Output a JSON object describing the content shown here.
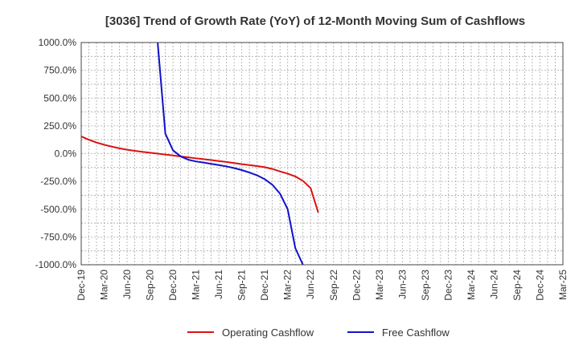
{
  "chart_data": {
    "type": "line",
    "title": "[3036]  Trend of Growth Rate (YoY) of 12-Month Moving Sum of Cashflows",
    "xlabel": "",
    "ylabel": "",
    "ylim": [
      -1000,
      1000
    ],
    "yticks": [
      1000,
      750,
      500,
      250,
      0,
      -250,
      -500,
      -750,
      -1000
    ],
    "ytick_labels": [
      "1000.0%",
      "750.0%",
      "500.0%",
      "250.0%",
      "0.0%",
      "-250.0%",
      "-500.0%",
      "-750.0%",
      "-1000.0%"
    ],
    "x_start": "Dec-19",
    "x_end": "Mar-25",
    "x_tick_labels": [
      "Dec-19",
      "Mar-20",
      "Jun-20",
      "Sep-20",
      "Dec-20",
      "Mar-21",
      "Jun-21",
      "Sep-21",
      "Dec-21",
      "Mar-22",
      "Jun-22",
      "Sep-22",
      "Dec-22",
      "Mar-23",
      "Jun-23",
      "Sep-23",
      "Dec-23",
      "Mar-24",
      "Jun-24",
      "Sep-24",
      "Dec-24",
      "Mar-25"
    ],
    "grid": true,
    "legend_position": "bottom",
    "series": [
      {
        "name": "Operating Cashflow",
        "color": "#dd1111",
        "points": [
          [
            "Dec-19",
            155
          ],
          [
            "Jan-20",
            125
          ],
          [
            "Feb-20",
            100
          ],
          [
            "Mar-20",
            80
          ],
          [
            "Apr-20",
            63
          ],
          [
            "May-20",
            48
          ],
          [
            "Jun-20",
            35
          ],
          [
            "Jul-20",
            25
          ],
          [
            "Aug-20",
            16
          ],
          [
            "Sep-20",
            8
          ],
          [
            "Oct-20",
            0
          ],
          [
            "Nov-20",
            -8
          ],
          [
            "Dec-20",
            -16
          ],
          [
            "Jan-21",
            -25
          ],
          [
            "Feb-21",
            -33
          ],
          [
            "Mar-21",
            -42
          ],
          [
            "Apr-21",
            -50
          ],
          [
            "May-21",
            -58
          ],
          [
            "Jun-21",
            -67
          ],
          [
            "Jul-21",
            -75
          ],
          [
            "Aug-21",
            -85
          ],
          [
            "Sep-21",
            -95
          ],
          [
            "Oct-21",
            -103
          ],
          [
            "Nov-21",
            -112
          ],
          [
            "Dec-21",
            -122
          ],
          [
            "Jan-22",
            -138
          ],
          [
            "Feb-22",
            -160
          ],
          [
            "Mar-22",
            -180
          ],
          [
            "Apr-22",
            -205
          ],
          [
            "May-22",
            -245
          ],
          [
            "Jun-22",
            -310
          ],
          [
            "Jul-22",
            -530
          ]
        ]
      },
      {
        "name": "Free Cashflow",
        "color": "#1111cc",
        "points": [
          [
            "Oct-20",
            1000
          ],
          [
            "Nov-20",
            180
          ],
          [
            "Dec-20",
            30
          ],
          [
            "Jan-21",
            -25
          ],
          [
            "Feb-21",
            -55
          ],
          [
            "Mar-21",
            -70
          ],
          [
            "Apr-21",
            -80
          ],
          [
            "May-21",
            -92
          ],
          [
            "Jun-21",
            -103
          ],
          [
            "Jul-21",
            -115
          ],
          [
            "Aug-21",
            -130
          ],
          [
            "Sep-21",
            -148
          ],
          [
            "Oct-21",
            -170
          ],
          [
            "Nov-21",
            -195
          ],
          [
            "Dec-21",
            -230
          ],
          [
            "Jan-22",
            -280
          ],
          [
            "Feb-22",
            -360
          ],
          [
            "Mar-22",
            -500
          ],
          [
            "Apr-22",
            -850
          ],
          [
            "May-22",
            -1000
          ]
        ]
      }
    ]
  }
}
